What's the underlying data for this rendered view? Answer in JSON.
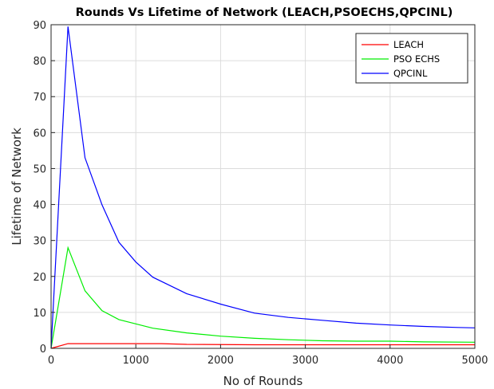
{
  "chart_data": {
    "type": "line",
    "title": "Rounds Vs Lifetime of Network (LEACH,PSOECHS,QPCINL)",
    "xlabel": "No of Rounds",
    "ylabel": "Lifetime of Network",
    "xlim": [
      0,
      5000
    ],
    "ylim": [
      0,
      90
    ],
    "xticks": [
      0,
      1000,
      2000,
      3000,
      4000,
      5000
    ],
    "yticks": [
      0,
      10,
      20,
      30,
      40,
      50,
      60,
      70,
      80,
      90
    ],
    "grid": true,
    "legend_position": "top-right",
    "series": [
      {
        "name": "LEACH",
        "color": "#ff0000",
        "points": [
          [
            0,
            0
          ],
          [
            200,
            1.3
          ],
          [
            400,
            1.3
          ],
          [
            800,
            1.3
          ],
          [
            1300,
            1.3
          ],
          [
            1600,
            1.1
          ],
          [
            2400,
            1.0
          ],
          [
            3000,
            1.0
          ],
          [
            4000,
            1.0
          ],
          [
            5000,
            1.0
          ]
        ]
      },
      {
        "name": "PSO ECHS",
        "color": "#00ee00",
        "points": [
          [
            0,
            0
          ],
          [
            200,
            28
          ],
          [
            400,
            16
          ],
          [
            600,
            10.5
          ],
          [
            800,
            8
          ],
          [
            1000,
            6.8
          ],
          [
            1200,
            5.6
          ],
          [
            1600,
            4.3
          ],
          [
            2000,
            3.4
          ],
          [
            2400,
            2.8
          ],
          [
            2800,
            2.4
          ],
          [
            3200,
            2.1
          ],
          [
            3600,
            2.0
          ],
          [
            4000,
            2.0
          ],
          [
            4400,
            1.8
          ],
          [
            5000,
            1.7
          ]
        ]
      },
      {
        "name": "QPCINL",
        "color": "#0000ff",
        "points": [
          [
            0,
            0
          ],
          [
            200,
            89.5
          ],
          [
            400,
            53
          ],
          [
            600,
            40
          ],
          [
            800,
            29.5
          ],
          [
            1000,
            24
          ],
          [
            1200,
            19.8
          ],
          [
            1600,
            15.2
          ],
          [
            2000,
            12.3
          ],
          [
            2400,
            9.8
          ],
          [
            2800,
            8.6
          ],
          [
            3200,
            7.8
          ],
          [
            3600,
            7.0
          ],
          [
            4000,
            6.5
          ],
          [
            4400,
            6.1
          ],
          [
            4800,
            5.8
          ],
          [
            5000,
            5.7
          ]
        ]
      }
    ]
  }
}
